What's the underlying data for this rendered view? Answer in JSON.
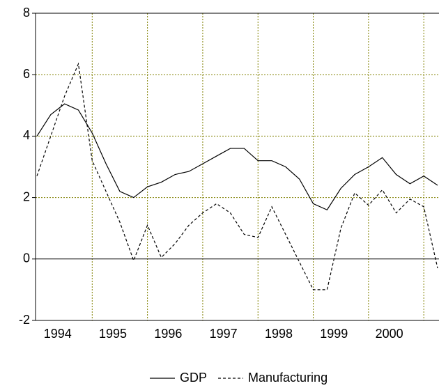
{
  "chart_data": {
    "type": "line",
    "categories": [
      "1994",
      null,
      null,
      null,
      "1995",
      null,
      null,
      null,
      "1996",
      null,
      null,
      null,
      "1997",
      null,
      null,
      null,
      "1998",
      null,
      null,
      null,
      "1999",
      null,
      null,
      null,
      "2000",
      null,
      null,
      null,
      null,
      null
    ],
    "series": [
      {
        "name": "GDP",
        "color": "#000000",
        "dash": "solid",
        "values": [
          4.0,
          4.7,
          5.05,
          4.85,
          4.1,
          3.1,
          2.2,
          2.0,
          2.35,
          2.5,
          2.75,
          2.85,
          3.1,
          3.35,
          3.6,
          3.6,
          3.2,
          3.2,
          3.0,
          2.6,
          1.8,
          1.6,
          2.3,
          2.75,
          3.0,
          3.3,
          2.75,
          2.45,
          2.7,
          2.4
        ]
      },
      {
        "name": "Manufacturing",
        "color": "#000000",
        "dash": "dashed",
        "values": [
          2.7,
          4.0,
          5.3,
          6.35,
          3.2,
          2.2,
          1.2,
          -0.05,
          1.1,
          0.05,
          0.5,
          1.1,
          1.5,
          1.8,
          1.5,
          0.8,
          0.7,
          1.7,
          0.8,
          -0.1,
          -1.0,
          -1.0,
          1.0,
          2.15,
          1.75,
          2.25,
          1.5,
          1.95,
          1.7,
          -0.3
        ]
      }
    ],
    "ylim": [
      -2,
      8
    ],
    "yticks": [
      -2,
      0,
      2,
      4,
      6,
      8
    ],
    "grid": true,
    "grid_color": "#808000",
    "legend": "bottom"
  }
}
